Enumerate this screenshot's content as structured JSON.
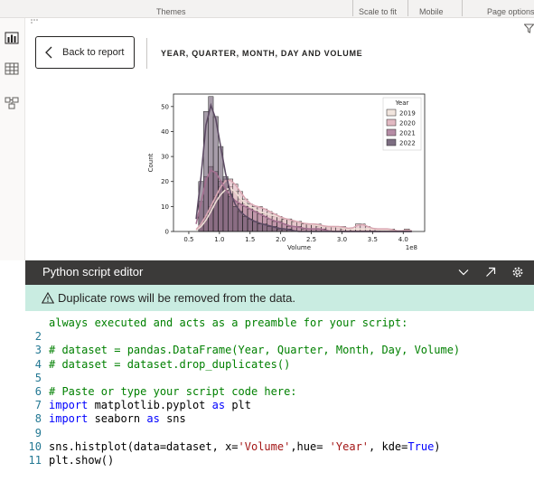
{
  "ribbon": {
    "themes_label": "Themes",
    "scale_label": "Scale to fit",
    "mobile_label": "Mobile",
    "page_options_label": "Page options"
  },
  "nav": {
    "items": [
      {
        "name": "report-view-icon"
      },
      {
        "name": "table-view-icon"
      },
      {
        "name": "model-view-icon"
      }
    ]
  },
  "focus": {
    "back_label": "Back to report",
    "visual_title": "YEAR, QUARTER, MONTH, DAY AND VOLUME"
  },
  "chart_data": {
    "type": "bar",
    "subtype": "histogram with kde lines",
    "ylabel": "Count",
    "xlabel": "Volume",
    "x_offset_label": "1e8",
    "xticks": [
      "0.5",
      "1.0",
      "1.5",
      "2.0",
      "2.5",
      "3.0",
      "3.5",
      "4.0"
    ],
    "yticks": [
      0,
      10,
      20,
      30,
      40,
      50
    ],
    "xlim": [
      0.25,
      4.35
    ],
    "ylim": [
      0,
      55
    ],
    "legend_title": "Year",
    "legend_position": "top-right",
    "bin_edges": [
      0.58,
      0.66,
      0.74,
      0.82,
      0.9,
      0.98,
      1.06,
      1.14,
      1.22,
      1.3,
      1.38,
      1.46,
      1.54,
      1.62,
      1.7,
      1.78,
      1.86,
      1.94,
      2.02,
      2.1,
      2.18,
      2.26,
      2.34,
      2.42,
      2.5,
      2.58,
      2.66,
      2.74,
      2.82,
      2.9,
      2.98,
      3.06,
      3.14,
      3.22,
      3.3,
      3.38,
      3.46,
      3.54,
      3.62,
      3.7,
      3.78,
      3.86,
      3.94,
      4.02,
      4.1,
      4.18
    ],
    "series": [
      {
        "name": "2019",
        "color": "#eedfd6",
        "values": [
          0,
          2,
          4,
          8,
          12,
          15,
          17,
          18,
          16,
          13,
          11,
          10,
          9,
          8,
          7,
          7,
          6,
          6,
          5,
          5,
          4,
          4,
          3,
          3,
          3,
          2,
          2,
          2,
          2,
          2,
          1,
          1,
          1,
          1,
          1,
          1,
          1,
          1,
          0,
          1,
          0,
          0,
          0,
          1,
          0
        ]
      },
      {
        "name": "2020",
        "color": "#d9a8b3",
        "values": [
          0,
          3,
          6,
          10,
          14,
          18,
          21,
          21,
          19,
          16,
          13,
          11,
          10,
          10,
          9,
          8,
          7,
          6,
          5,
          5,
          4,
          4,
          3,
          3,
          3,
          3,
          2,
          2,
          2,
          2,
          2,
          1,
          1,
          3,
          3,
          2,
          1,
          1,
          1,
          1,
          1,
          0,
          0,
          1,
          0
        ]
      },
      {
        "name": "2021",
        "color": "#a26f8f",
        "values": [
          0,
          12,
          22,
          26,
          24,
          20,
          17,
          14,
          12,
          11,
          10,
          9,
          8,
          7,
          6,
          5,
          4,
          4,
          3,
          2,
          2,
          2,
          1,
          1,
          1,
          1,
          1,
          0,
          0,
          0,
          0,
          0,
          0,
          0,
          0,
          0,
          0,
          0,
          0,
          0,
          0,
          0,
          0,
          0,
          0
        ]
      },
      {
        "name": "2022",
        "color": "#5c4a63",
        "values": [
          0,
          20,
          48,
          54,
          46,
          34,
          22,
          15,
          10,
          8,
          6,
          5,
          4,
          3,
          3,
          2,
          2,
          1,
          1,
          1,
          0,
          0,
          0,
          0,
          0,
          0,
          0,
          0,
          0,
          0,
          0,
          0,
          0,
          0,
          0,
          0,
          0,
          0,
          0,
          0,
          0,
          0,
          0,
          0,
          0
        ]
      }
    ]
  },
  "editor": {
    "title": "Python script editor",
    "warning": "Duplicate rows will be removed from the data.",
    "lines": [
      {
        "n": "",
        "parts": [
          {
            "cls": "c-com",
            "t": "always executed and acts as a preamble for your script:"
          }
        ]
      },
      {
        "n": "2",
        "parts": []
      },
      {
        "n": "3",
        "parts": [
          {
            "cls": "c-com",
            "t": "# dataset = pandas.DataFrame(Year, Quarter, Month, Day, Volume)"
          }
        ]
      },
      {
        "n": "4",
        "parts": [
          {
            "cls": "c-com",
            "t": "# dataset = dataset.drop_duplicates()"
          }
        ]
      },
      {
        "n": "5",
        "parts": []
      },
      {
        "n": "6",
        "parts": [
          {
            "cls": "c-com",
            "t": "# Paste or type your script code here:"
          }
        ]
      },
      {
        "n": "7",
        "parts": [
          {
            "cls": "c-kw",
            "t": "import"
          },
          {
            "cls": "c-txt",
            "t": " matplotlib.pyplot "
          },
          {
            "cls": "c-kw",
            "t": "as"
          },
          {
            "cls": "c-txt",
            "t": " plt"
          }
        ]
      },
      {
        "n": "8",
        "parts": [
          {
            "cls": "c-kw",
            "t": "import"
          },
          {
            "cls": "c-txt",
            "t": " seaborn "
          },
          {
            "cls": "c-kw",
            "t": "as"
          },
          {
            "cls": "c-txt",
            "t": " sns"
          }
        ]
      },
      {
        "n": "9",
        "parts": []
      },
      {
        "n": "10",
        "parts": [
          {
            "cls": "c-txt",
            "t": "sns.histplot(data=dataset, x="
          },
          {
            "cls": "c-str",
            "t": "'Volume'"
          },
          {
            "cls": "c-txt",
            "t": ",hue= "
          },
          {
            "cls": "c-str",
            "t": "'Year'"
          },
          {
            "cls": "c-txt",
            "t": ", kde="
          },
          {
            "cls": "c-kw",
            "t": "True"
          },
          {
            "cls": "c-txt",
            "t": ")"
          }
        ]
      },
      {
        "n": "11",
        "parts": [
          {
            "cls": "c-txt",
            "t": "plt.show()"
          }
        ]
      }
    ]
  }
}
